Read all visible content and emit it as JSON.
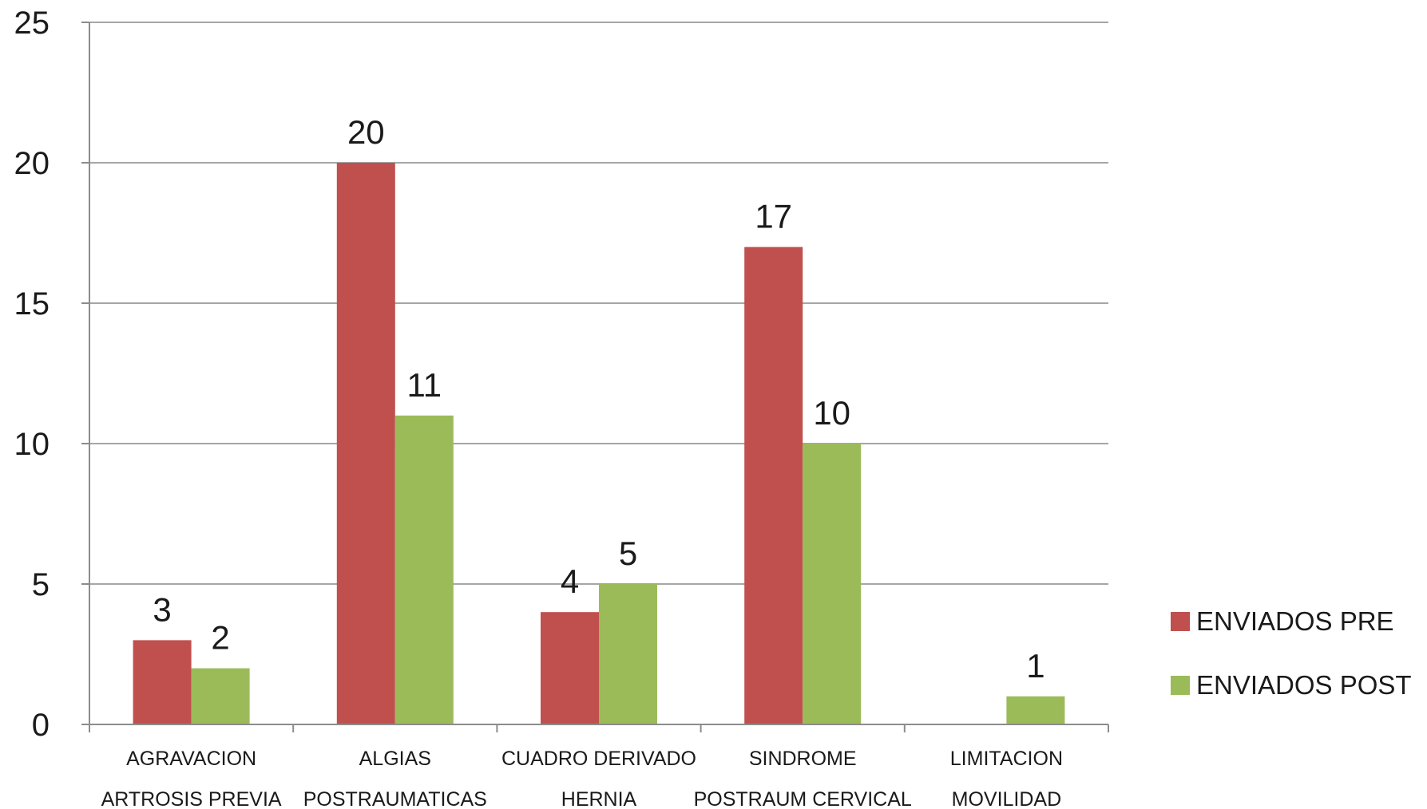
{
  "chart_data": {
    "type": "bar",
    "categories": [
      [
        "AGRAVACION",
        "ARTROSIS PREVIA"
      ],
      [
        "ALGIAS",
        "POSTRAUMATICAS"
      ],
      [
        "CUADRO DERIVADO",
        "HERNIA"
      ],
      [
        "SINDROME",
        "POSTRAUM CERVICAL"
      ],
      [
        "LIMITACION",
        "MOVILIDAD"
      ]
    ],
    "series": [
      {
        "name": "ENVIADOS PRE",
        "color": "#c0504d",
        "values": [
          3,
          20,
          4,
          17,
          null
        ]
      },
      {
        "name": "ENVIADOS POST",
        "color": "#9bbb59",
        "values": [
          2,
          11,
          5,
          10,
          1
        ]
      }
    ],
    "yticks": [
      0,
      5,
      10,
      15,
      20,
      25
    ],
    "ylim": [
      0,
      25
    ],
    "grid": true,
    "legend_position": "right"
  }
}
